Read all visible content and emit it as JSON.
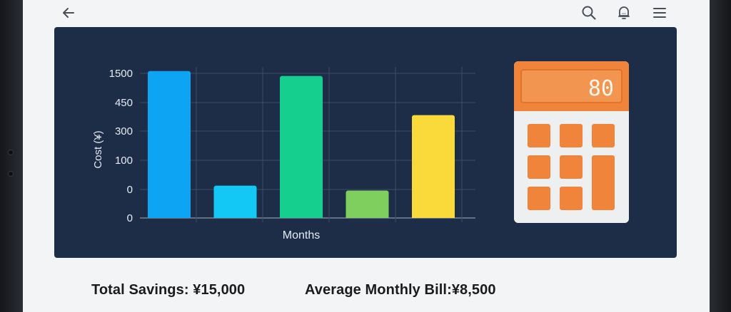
{
  "toolbar": {
    "back_icon": "arrow-left-icon",
    "search_icon": "search-icon",
    "notification_icon": "bell-icon",
    "menu_icon": "hamburger-menu-icon"
  },
  "chart_data": {
    "type": "bar",
    "categories": [
      "",
      "",
      "",
      "",
      ""
    ],
    "values": [
      1500,
      330,
      1450,
      280,
      1050
    ],
    "ytick_labels": [
      "0",
      "0",
      "100",
      "300",
      "450",
      "1500"
    ],
    "ylabel": "Cost (¥)",
    "xlabel": "Months",
    "colors": [
      "#0ea4f4",
      "#13c8f4",
      "#14cf8e",
      "#7fcf5f",
      "#fad93a"
    ],
    "grid": true
  },
  "calculator": {
    "display": "80",
    "accent": "#f0843a",
    "body": "#eeeff1"
  },
  "summary": {
    "total_savings": "Total Savings: ¥15,000",
    "average_bill": "Average Monthly Bill:¥8,500"
  },
  "colors": {
    "card_background": "#1d2d47",
    "screen_background": "#f3f4f6"
  }
}
